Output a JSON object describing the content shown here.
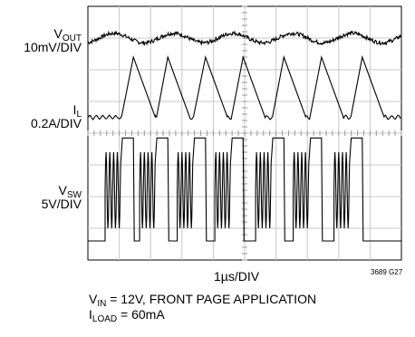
{
  "chart_data": {
    "type": "line",
    "title": "",
    "grid": true,
    "divisions": {
      "x": 10,
      "y": 8
    },
    "x_scale_label": "1µs/DIV",
    "figure_id": "3689 G27",
    "channels": [
      {
        "name": "V",
        "subscript": "OUT",
        "scale": "10mV/DIV",
        "waveform": "ripple",
        "center_div": 7
      },
      {
        "name": "I",
        "subscript": "L",
        "scale": "0.2A/DIV",
        "waveform": "sawtooth",
        "baseline_div": 4.5,
        "peak_div": 6.4
      },
      {
        "name": "V",
        "subscript": "SW",
        "scale": "5V/DIV",
        "waveform": "switching",
        "low_div": 0.6,
        "high_div": 3.85
      }
    ],
    "switching_periods_us": [
      1.1,
      1.6,
      2.2,
      2.8,
      3.4,
      4.0,
      4.6,
      5.3,
      5.9,
      6.5,
      7.1,
      7.8,
      8.4
    ],
    "conditions": [
      {
        "main": "V",
        "sub": "IN",
        "rest": " = 12V, FRONT PAGE APPLICATION"
      },
      {
        "main": "I",
        "sub": "LOAD",
        "rest": " = 60mA"
      }
    ]
  }
}
